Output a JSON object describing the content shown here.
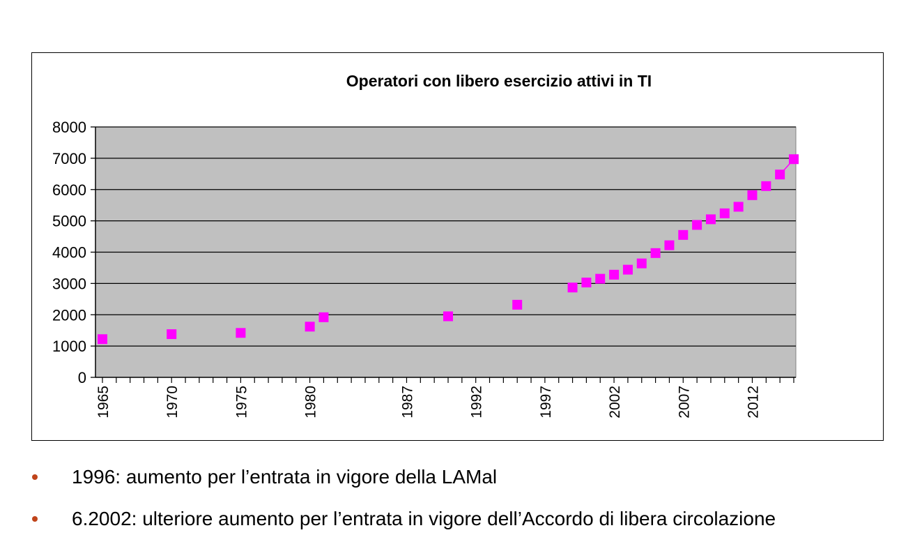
{
  "chart_data": {
    "type": "scatter",
    "title": "Operatori con libero esercizio attivi in  TI",
    "xlabel": "",
    "ylabel": "",
    "ylim": [
      0,
      8000
    ],
    "yticks": [
      "0",
      "1000",
      "2000",
      "3000",
      "4000",
      "5000",
      "6000",
      "7000",
      "8000"
    ],
    "xticks": [
      "1965",
      "1970",
      "1975",
      "1980",
      "1987",
      "1992",
      "1997",
      "2002",
      "2007",
      "2012"
    ],
    "grid": true,
    "legend": "none",
    "marker_color": "#ff00ff",
    "plot_background": "#c0c0c0",
    "points": [
      {
        "x": "1965",
        "y": 1220
      },
      {
        "x": "1970",
        "y": 1380
      },
      {
        "x": "1975",
        "y": 1420
      },
      {
        "x": "1980",
        "y": 1620
      },
      {
        "x": "1981",
        "y": 1920
      },
      {
        "x": "1990",
        "y": 1950
      },
      {
        "x": "1995",
        "y": 2320
      },
      {
        "x": "1999",
        "y": 2870
      },
      {
        "x": "2000",
        "y": 3030
      },
      {
        "x": "2001",
        "y": 3150
      },
      {
        "x": "2002",
        "y": 3280
      },
      {
        "x": "2003",
        "y": 3440
      },
      {
        "x": "2004",
        "y": 3640
      },
      {
        "x": "2005",
        "y": 3970
      },
      {
        "x": "2006",
        "y": 4220
      },
      {
        "x": "2007",
        "y": 4550
      },
      {
        "x": "2008",
        "y": 4870
      },
      {
        "x": "2009",
        "y": 5050
      },
      {
        "x": "2010",
        "y": 5240
      },
      {
        "x": "2011",
        "y": 5450
      },
      {
        "x": "2012",
        "y": 5820
      },
      {
        "x": "2013",
        "y": 6110
      },
      {
        "x": "2014",
        "y": 6480
      },
      {
        "x": "2015",
        "y": 6970
      }
    ]
  },
  "bullets": [
    {
      "text": "1996: aumento per l’entrata in vigore della LAMal"
    },
    {
      "text": "6.2002: ulteriore aumento per l’entrata in vigore dell’Accordo di libera circolazione"
    }
  ]
}
